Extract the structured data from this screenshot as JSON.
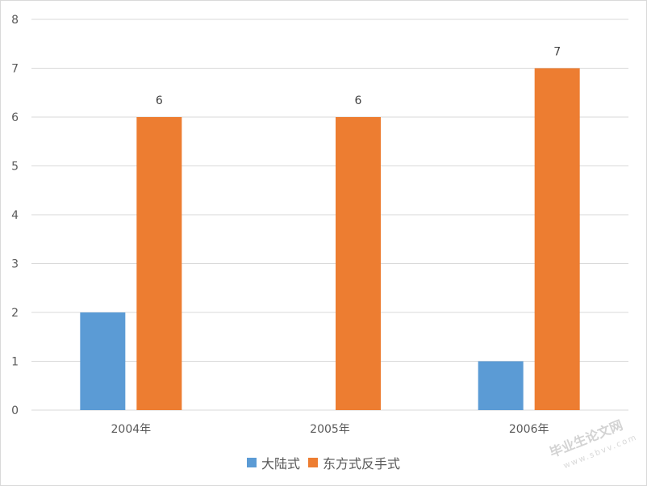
{
  "chart_data": {
    "type": "bar",
    "categories": [
      "2004年",
      "2005年",
      "2006年"
    ],
    "series": [
      {
        "name": "大陆式",
        "values": [
          2,
          0,
          1
        ],
        "color": "#5b9bd5"
      },
      {
        "name": "东方式反手式",
        "values": [
          6,
          6,
          7
        ],
        "color": "#ed7d31"
      }
    ],
    "data_labels": [
      [
        null,
        null,
        null
      ],
      [
        6,
        6,
        7
      ]
    ],
    "yticks": [
      0,
      1,
      2,
      3,
      4,
      5,
      6,
      7,
      8
    ],
    "ylim": [
      0,
      8
    ],
    "grid": true,
    "legend_position": "bottom"
  },
  "colors": {
    "gridline": "#d9d9d9",
    "tick_text": "#595959",
    "label_text": "#404040"
  },
  "watermark": {
    "title": "毕业生论文网",
    "sub": "www.sbvv.com"
  }
}
